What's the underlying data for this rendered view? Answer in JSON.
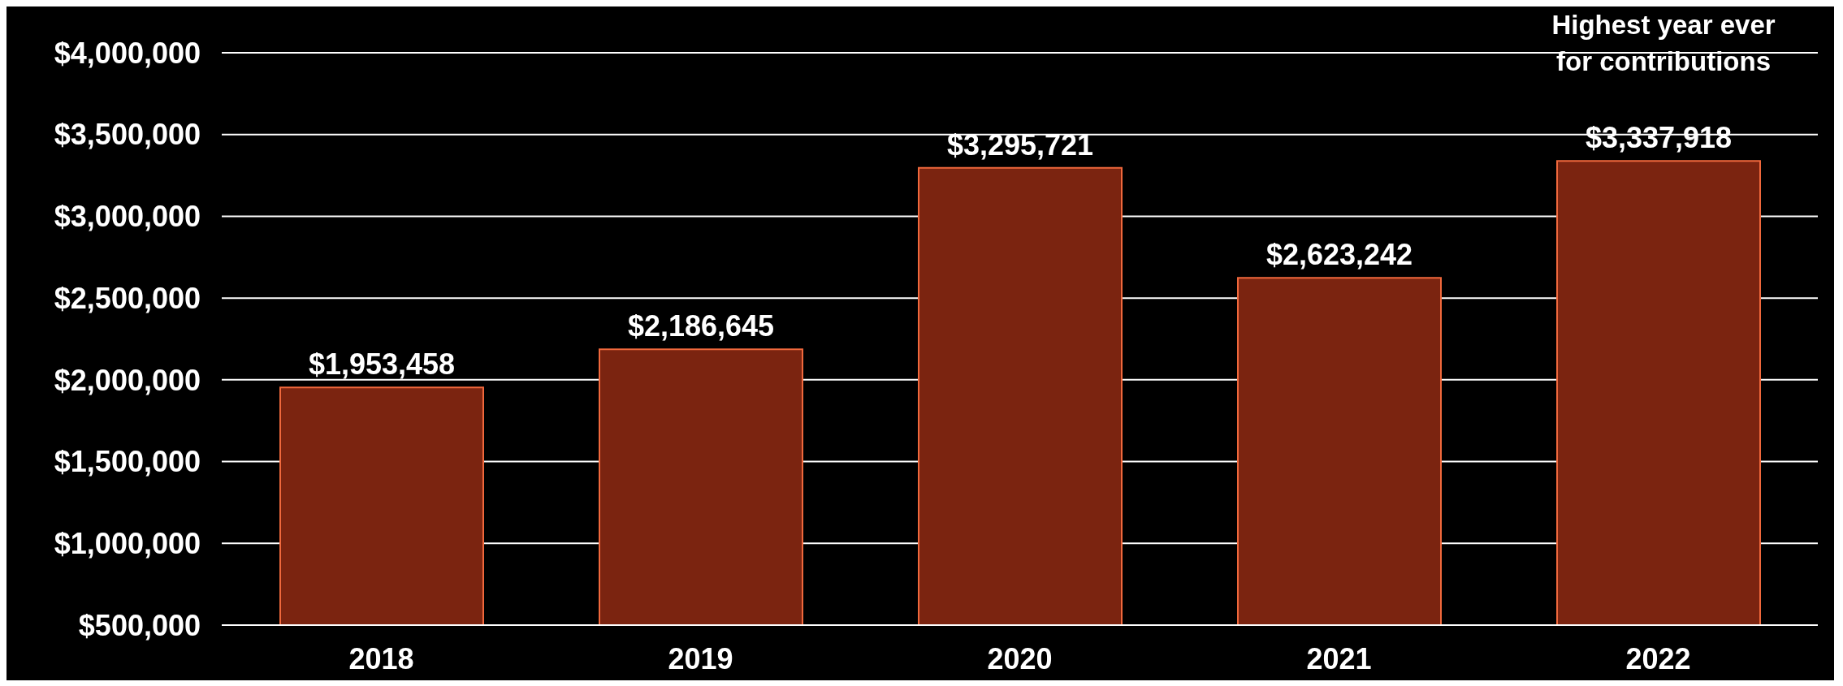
{
  "chart_data": {
    "type": "bar",
    "categories": [
      "2018",
      "2019",
      "2020",
      "2021",
      "2022"
    ],
    "series": [
      {
        "color": "#7b2410",
        "values": [
          1953458,
          2186645,
          3295721,
          2623242,
          3337918
        ],
        "value_labels": [
          "$1,953,458",
          "$2,186,645",
          "$3,295,721",
          "$2,623,242",
          "$3,337,918"
        ]
      }
    ],
    "ylim": [
      500000,
      4000000
    ],
    "yticks": [
      {
        "value": 500000,
        "label": "$500,000"
      },
      {
        "value": 1000000,
        "label": "$1,000,000"
      },
      {
        "value": 1500000,
        "label": "$1,500,000"
      },
      {
        "value": 2000000,
        "label": "$2,000,000"
      },
      {
        "value": 2500000,
        "label": "$2,500,000"
      },
      {
        "value": 3000000,
        "label": "$3,000,000"
      },
      {
        "value": 3500000,
        "label": "$3,500,000"
      },
      {
        "value": 4000000,
        "label": "$4,000,000"
      }
    ],
    "grid": "y",
    "annotations": [
      "Highest  year ever for contributions"
    ]
  }
}
